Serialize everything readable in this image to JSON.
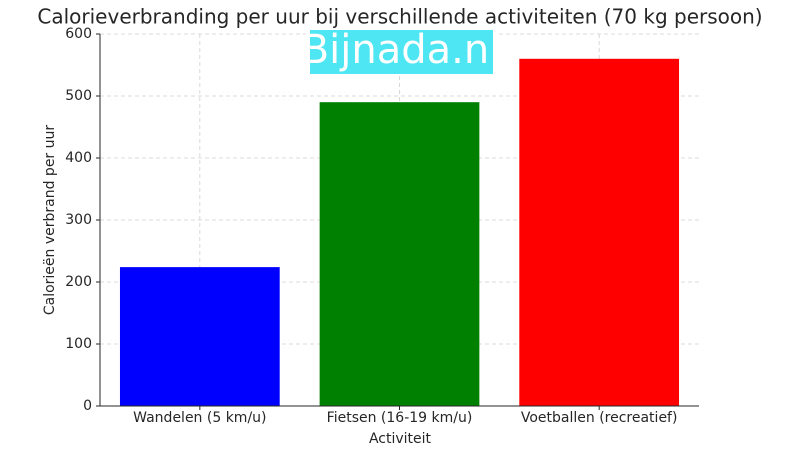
{
  "chart_data": {
    "type": "bar",
    "title": "Calorieverbranding per uur bij verschillende activiteiten (70 kg persoon)",
    "xlabel": "Activiteit",
    "ylabel": "Calorieën verbrand per uur",
    "watermark": "Bijnada.nl",
    "categories": [
      "Wandelen (5 km/u)",
      "Fietsen (16-19 km/u)",
      "Voetballen (recreatief)"
    ],
    "values": [
      224,
      490,
      560
    ],
    "colors": [
      "#0000ff",
      "#008000",
      "#ff0000"
    ],
    "ylim": [
      0,
      600
    ],
    "yticks": [
      0,
      100,
      200,
      300,
      400,
      500,
      600
    ],
    "grid": true
  }
}
